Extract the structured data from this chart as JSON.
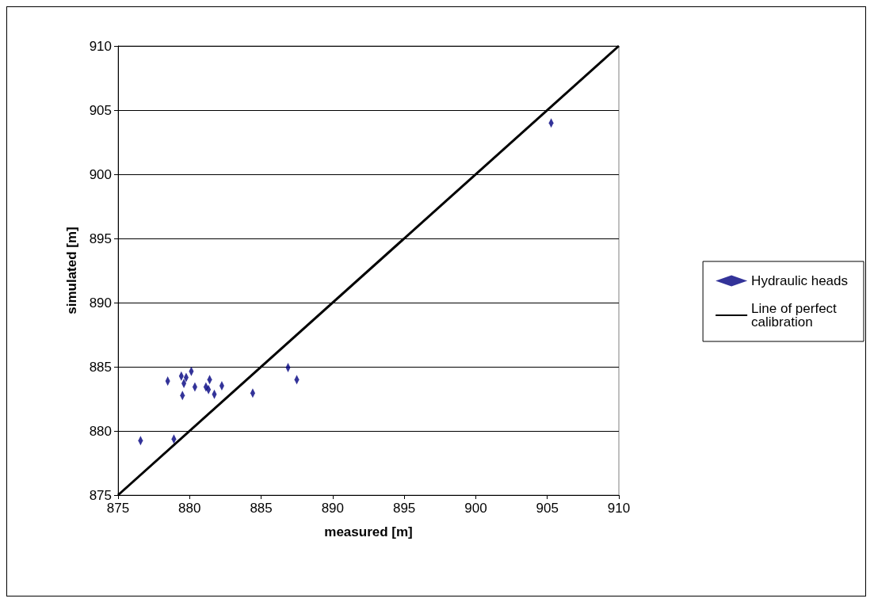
{
  "chart_data": {
    "type": "scatter",
    "xlabel": "measured [m]",
    "ylabel": "simulated [m]",
    "xlim": [
      875,
      910
    ],
    "xticks": [
      875,
      880,
      885,
      890,
      895,
      900,
      905,
      910
    ],
    "ylim": [
      875,
      910
    ],
    "yticks": [
      875,
      880,
      885,
      890,
      895,
      900,
      905,
      910
    ],
    "grid": "y",
    "legend": "right",
    "series": [
      {
        "name": "Hydraulic heads",
        "type": "scatter",
        "color": "#000080",
        "x": [
          876.57,
          878.9,
          878.47,
          879.42,
          879.76,
          880.12,
          879.6,
          879.5,
          880.37,
          881.14,
          881.4,
          881.32,
          881.73,
          882.25,
          884.41,
          886.88,
          887.49,
          905.27
        ],
        "values": [
          879.25,
          879.37,
          883.89,
          884.28,
          884.17,
          884.64,
          883.7,
          882.77,
          883.42,
          883.42,
          883.99,
          883.22,
          882.85,
          883.52,
          882.94,
          884.94,
          883.99,
          904.0
        ]
      },
      {
        "name": "Line of perfect calibration",
        "type": "line",
        "color": "#000000",
        "x": [
          875,
          910
        ],
        "values": [
          875,
          910
        ]
      }
    ]
  }
}
